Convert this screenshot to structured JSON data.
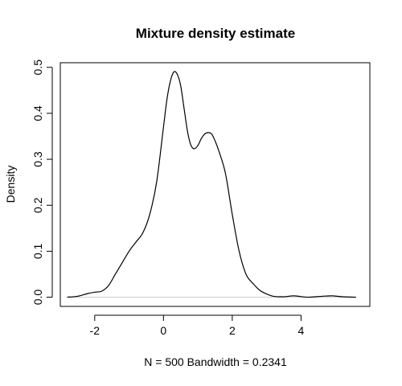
{
  "chart_data": {
    "type": "line",
    "title": "Mixture density estimate",
    "xlabel": "N = 500   Bandwidth = 0.2341",
    "ylabel": "Density",
    "xlim": [
      -3.0,
      6.0
    ],
    "ylim": [
      -0.02,
      0.51
    ],
    "grid": false,
    "x_ticks": [
      -2,
      0,
      2,
      4
    ],
    "x_tick_labels": [
      "-2",
      "0",
      "2",
      "4"
    ],
    "y_ticks": [
      0.0,
      0.1,
      0.2,
      0.3,
      0.4,
      0.5
    ],
    "y_tick_labels": [
      "0.0",
      "0.1",
      "0.2",
      "0.3",
      "0.4",
      "0.5"
    ],
    "series": [
      {
        "x": [
          -2.8,
          -2.5,
          -2.2,
          -2.0,
          -1.8,
          -1.6,
          -1.4,
          -1.2,
          -1.0,
          -0.8,
          -0.6,
          -0.4,
          -0.2,
          0.0,
          0.1,
          0.2,
          0.3,
          0.4,
          0.5,
          0.6,
          0.7,
          0.8,
          0.9,
          1.0,
          1.1,
          1.2,
          1.3,
          1.4,
          1.5,
          1.6,
          1.8,
          2.0,
          2.2,
          2.4,
          2.6,
          2.8,
          3.0,
          3.2,
          3.5,
          3.8,
          4.2,
          4.6,
          4.9,
          5.2,
          5.6
        ],
        "y": [
          0.0,
          0.002,
          0.008,
          0.011,
          0.013,
          0.025,
          0.05,
          0.075,
          0.1,
          0.12,
          0.14,
          0.18,
          0.25,
          0.37,
          0.43,
          0.47,
          0.49,
          0.485,
          0.46,
          0.41,
          0.36,
          0.33,
          0.323,
          0.33,
          0.345,
          0.355,
          0.358,
          0.355,
          0.34,
          0.32,
          0.27,
          0.18,
          0.1,
          0.05,
          0.03,
          0.015,
          0.007,
          0.002,
          0.001,
          0.003,
          0.0,
          0.002,
          0.003,
          0.001,
          0.0
        ]
      }
    ],
    "baseline": 0.0,
    "colors": {
      "line": "#000000",
      "baseline": "#cccccc",
      "frame": "#000000"
    }
  }
}
